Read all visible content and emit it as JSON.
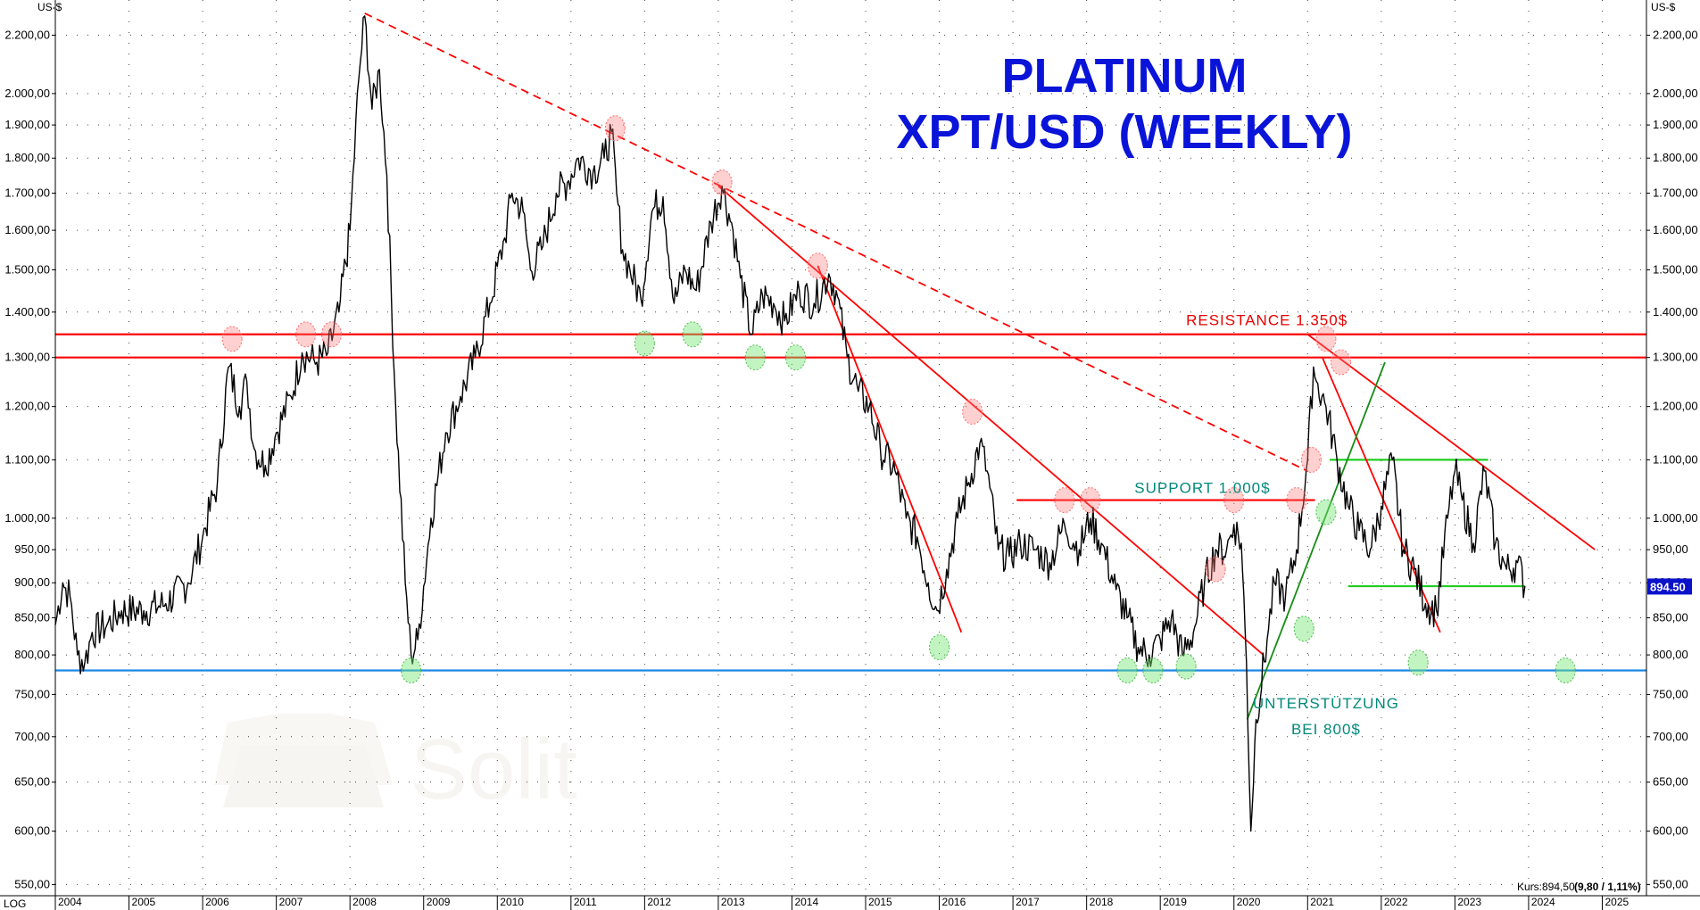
{
  "chart_data": {
    "type": "line",
    "title": "PLATINUM",
    "subtitle": "XPT/USD (WEEKLY)",
    "y_unit_label": "US-$",
    "scale_label": "LOG",
    "log_scale": true,
    "grid": true,
    "ylim": [
      540,
      2330
    ],
    "xlim": [
      2004.0,
      2025.6
    ],
    "y_ticks": [
      {
        "v": 550,
        "label": "550,00"
      },
      {
        "v": 600,
        "label": "600,00"
      },
      {
        "v": 650,
        "label": "650,00"
      },
      {
        "v": 700,
        "label": "700,00"
      },
      {
        "v": 750,
        "label": "750,00"
      },
      {
        "v": 800,
        "label": "800,00"
      },
      {
        "v": 850,
        "label": "850,00"
      },
      {
        "v": 900,
        "label": "900,00"
      },
      {
        "v": 950,
        "label": "950,00"
      },
      {
        "v": 1000,
        "label": "1.000,00"
      },
      {
        "v": 1100,
        "label": "1.100,00"
      },
      {
        "v": 1200,
        "label": "1.200,00"
      },
      {
        "v": 1300,
        "label": "1.300,00"
      },
      {
        "v": 1400,
        "label": "1.400,00"
      },
      {
        "v": 1500,
        "label": "1.500,00"
      },
      {
        "v": 1600,
        "label": "1.600,00"
      },
      {
        "v": 1700,
        "label": "1.700,00"
      },
      {
        "v": 1800,
        "label": "1.800,00"
      },
      {
        "v": 1900,
        "label": "1.900,00"
      },
      {
        "v": 2000,
        "label": "2.000,00"
      },
      {
        "v": 2200,
        "label": "2.200,00"
      }
    ],
    "x_ticks": [
      "2004",
      "2005",
      "2006",
      "2007",
      "2008",
      "2009",
      "2010",
      "2011",
      "2012",
      "2013",
      "2014",
      "2015",
      "2016",
      "2017",
      "2018",
      "2019",
      "2020",
      "2021",
      "2022",
      "2023",
      "2024",
      "2025"
    ],
    "series": [
      {
        "points": [
          [
            2004.0,
            840
          ],
          [
            2004.1,
            900
          ],
          [
            2004.2,
            880
          ],
          [
            2004.3,
            800
          ],
          [
            2004.4,
            790
          ],
          [
            2004.5,
            830
          ],
          [
            2004.7,
            840
          ],
          [
            2004.9,
            860
          ],
          [
            2005.2,
            860
          ],
          [
            2005.5,
            870
          ],
          [
            2005.8,
            900
          ],
          [
            2006.0,
            970
          ],
          [
            2006.2,
            1060
          ],
          [
            2006.35,
            1280
          ],
          [
            2006.5,
            1200
          ],
          [
            2006.6,
            1250
          ],
          [
            2006.7,
            1120
          ],
          [
            2006.85,
            1090
          ],
          [
            2007.0,
            1150
          ],
          [
            2007.2,
            1220
          ],
          [
            2007.35,
            1310
          ],
          [
            2007.55,
            1290
          ],
          [
            2007.7,
            1310
          ],
          [
            2007.85,
            1400
          ],
          [
            2008.0,
            1600
          ],
          [
            2008.12,
            2050
          ],
          [
            2008.2,
            2270
          ],
          [
            2008.3,
            1950
          ],
          [
            2008.4,
            2080
          ],
          [
            2008.5,
            1750
          ],
          [
            2008.62,
            1200
          ],
          [
            2008.75,
            900
          ],
          [
            2008.83,
            800
          ],
          [
            2008.92,
            820
          ],
          [
            2009.1,
            1000
          ],
          [
            2009.3,
            1150
          ],
          [
            2009.5,
            1220
          ],
          [
            2009.7,
            1300
          ],
          [
            2009.9,
            1420
          ],
          [
            2010.1,
            1580
          ],
          [
            2010.2,
            1700
          ],
          [
            2010.35,
            1650
          ],
          [
            2010.45,
            1500
          ],
          [
            2010.6,
            1550
          ],
          [
            2010.8,
            1700
          ],
          [
            2010.95,
            1730
          ],
          [
            2011.1,
            1800
          ],
          [
            2011.3,
            1760
          ],
          [
            2011.45,
            1800
          ],
          [
            2011.55,
            1880
          ],
          [
            2011.62,
            1700
          ],
          [
            2011.7,
            1550
          ],
          [
            2011.8,
            1500
          ],
          [
            2011.95,
            1430
          ],
          [
            2012.1,
            1650
          ],
          [
            2012.25,
            1690
          ],
          [
            2012.4,
            1420
          ],
          [
            2012.55,
            1500
          ],
          [
            2012.7,
            1450
          ],
          [
            2012.9,
            1620
          ],
          [
            2013.05,
            1720
          ],
          [
            2013.2,
            1600
          ],
          [
            2013.3,
            1480
          ],
          [
            2013.45,
            1350
          ],
          [
            2013.6,
            1440
          ],
          [
            2013.75,
            1420
          ],
          [
            2013.9,
            1380
          ],
          [
            2014.1,
            1450
          ],
          [
            2014.3,
            1420
          ],
          [
            2014.5,
            1490
          ],
          [
            2014.6,
            1450
          ],
          [
            2014.75,
            1300
          ],
          [
            2014.9,
            1230
          ],
          [
            2015.05,
            1200
          ],
          [
            2015.2,
            1120
          ],
          [
            2015.4,
            1080
          ],
          [
            2015.55,
            1000
          ],
          [
            2015.7,
            970
          ],
          [
            2015.85,
            900
          ],
          [
            2015.97,
            860
          ],
          [
            2016.1,
            920
          ],
          [
            2016.25,
            1000
          ],
          [
            2016.4,
            1060
          ],
          [
            2016.55,
            1130
          ],
          [
            2016.65,
            1080
          ],
          [
            2016.8,
            950
          ],
          [
            2016.95,
            940
          ],
          [
            2017.1,
            960
          ],
          [
            2017.3,
            950
          ],
          [
            2017.5,
            930
          ],
          [
            2017.7,
            990
          ],
          [
            2017.9,
            950
          ],
          [
            2018.05,
            1000
          ],
          [
            2018.2,
            960
          ],
          [
            2018.4,
            890
          ],
          [
            2018.55,
            850
          ],
          [
            2018.7,
            810
          ],
          [
            2018.85,
            800
          ],
          [
            2019.0,
            820
          ],
          [
            2019.15,
            850
          ],
          [
            2019.3,
            800
          ],
          [
            2019.45,
            830
          ],
          [
            2019.6,
            900
          ],
          [
            2019.75,
            950
          ],
          [
            2019.9,
            950
          ],
          [
            2020.0,
            990
          ],
          [
            2020.1,
            960
          ],
          [
            2020.17,
            790
          ],
          [
            2020.23,
            600
          ],
          [
            2020.3,
            720
          ],
          [
            2020.45,
            820
          ],
          [
            2020.55,
            900
          ],
          [
            2020.7,
            880
          ],
          [
            2020.85,
            950
          ],
          [
            2021.0,
            1100
          ],
          [
            2021.08,
            1280
          ],
          [
            2021.12,
            1250
          ],
          [
            2021.25,
            1200
          ],
          [
            2021.4,
            1100
          ],
          [
            2021.55,
            1020
          ],
          [
            2021.7,
            980
          ],
          [
            2021.85,
            950
          ],
          [
            2022.0,
            1020
          ],
          [
            2022.15,
            1100
          ],
          [
            2022.3,
            950
          ],
          [
            2022.45,
            920
          ],
          [
            2022.6,
            870
          ],
          [
            2022.75,
            860
          ],
          [
            2022.9,
            1000
          ],
          [
            2023.0,
            1080
          ],
          [
            2023.1,
            1030
          ],
          [
            2023.25,
            960
          ],
          [
            2023.4,
            1080
          ],
          [
            2023.55,
            960
          ],
          [
            2023.7,
            920
          ],
          [
            2023.85,
            930
          ],
          [
            2023.95,
            895
          ]
        ]
      }
    ],
    "horizontal_lines": [
      {
        "value": 1350,
        "color": "#ff0000",
        "x0": 2004.0,
        "x1": 2025.6
      },
      {
        "value": 1300,
        "color": "#ff0000",
        "x0": 2004.0,
        "x1": 2025.6
      },
      {
        "value": 780,
        "color": "#1e88e5",
        "x0": 2004.0,
        "x1": 2025.6
      },
      {
        "value": 1030,
        "color": "#ff0000",
        "x0": 2017.05,
        "x1": 2021.1
      },
      {
        "value": 1100,
        "color": "#22cc22",
        "x0": 2021.3,
        "x1": 2023.45
      },
      {
        "value": 895,
        "color": "#22cc22",
        "x0": 2021.55,
        "x1": 2023.95
      }
    ],
    "trend_lines": [
      {
        "x0": 2008.2,
        "y0": 2280,
        "x1": 2021.0,
        "y1": 1080,
        "color": "#ff0000",
        "dashed": true
      },
      {
        "x0": 2013.0,
        "y0": 1720,
        "x1": 2020.4,
        "y1": 800,
        "color": "#ff0000",
        "dashed": false
      },
      {
        "x0": 2014.35,
        "y0": 1510,
        "x1": 2016.3,
        "y1": 830,
        "color": "#ff0000",
        "dashed": false
      },
      {
        "x0": 2021.0,
        "y0": 1350,
        "x1": 2024.9,
        "y1": 950,
        "color": "#ff0000",
        "dashed": false
      },
      {
        "x0": 2021.2,
        "y0": 1300,
        "x1": 2022.8,
        "y1": 830,
        "color": "#ff0000",
        "dashed": false
      },
      {
        "x0": 2020.18,
        "y0": 720,
        "x1": 2022.05,
        "y1": 1290,
        "color": "#168c16",
        "dashed": false
      }
    ],
    "markers": [
      {
        "x": 2006.4,
        "y": 1340,
        "kind": "high"
      },
      {
        "x": 2007.4,
        "y": 1350,
        "kind": "high"
      },
      {
        "x": 2007.75,
        "y": 1350,
        "kind": "high"
      },
      {
        "x": 2011.6,
        "y": 1890,
        "kind": "high"
      },
      {
        "x": 2013.05,
        "y": 1730,
        "kind": "high"
      },
      {
        "x": 2014.35,
        "y": 1510,
        "kind": "high"
      },
      {
        "x": 2016.45,
        "y": 1190,
        "kind": "high"
      },
      {
        "x": 2017.7,
        "y": 1030,
        "kind": "high"
      },
      {
        "x": 2018.05,
        "y": 1030,
        "kind": "high"
      },
      {
        "x": 2019.75,
        "y": 920,
        "kind": "high"
      },
      {
        "x": 2020.0,
        "y": 1030,
        "kind": "high"
      },
      {
        "x": 2020.85,
        "y": 1030,
        "kind": "high"
      },
      {
        "x": 2021.05,
        "y": 1100,
        "kind": "high"
      },
      {
        "x": 2021.25,
        "y": 1340,
        "kind": "high"
      },
      {
        "x": 2021.45,
        "y": 1290,
        "kind": "high"
      },
      {
        "x": 2012.0,
        "y": 1330,
        "kind": "low"
      },
      {
        "x": 2012.65,
        "y": 1350,
        "kind": "low"
      },
      {
        "x": 2013.5,
        "y": 1300,
        "kind": "low"
      },
      {
        "x": 2014.05,
        "y": 1300,
        "kind": "low"
      },
      {
        "x": 2008.83,
        "y": 780,
        "kind": "low"
      },
      {
        "x": 2016.0,
        "y": 810,
        "kind": "low"
      },
      {
        "x": 2018.55,
        "y": 780,
        "kind": "low"
      },
      {
        "x": 2018.9,
        "y": 780,
        "kind": "low"
      },
      {
        "x": 2019.35,
        "y": 785,
        "kind": "low"
      },
      {
        "x": 2020.95,
        "y": 835,
        "kind": "low"
      },
      {
        "x": 2021.25,
        "y": 1010,
        "kind": "low"
      },
      {
        "x": 2022.5,
        "y": 790,
        "kind": "low"
      },
      {
        "x": 2024.5,
        "y": 780,
        "kind": "low"
      }
    ],
    "annotations": [
      {
        "text": "RESISTANCE 1.350$",
        "x": 2019.35,
        "y": 1370,
        "color": "red"
      },
      {
        "text": "SUPPORT 1.000$",
        "x": 2018.65,
        "y": 1042,
        "color": "teal"
      },
      {
        "text": "UNTERSTÜTZUNG",
        "x": 2021.25,
        "y": 733,
        "color": "teal"
      },
      {
        "text": "BEI 800$",
        "x": 2021.25,
        "y": 703,
        "color": "teal"
      }
    ],
    "last_price": {
      "label": "894.50",
      "value": 894.5
    },
    "footer": {
      "kurs_label": "Kurs:894,50",
      "change": "(9,80 / 1,11%)"
    },
    "watermark": "Solit",
    "colors": {
      "price": "#000000",
      "resistance": "#ff0000",
      "support": "#1e88e5",
      "channel": "#22cc22",
      "title": "#0a14d8",
      "annotation_teal": "#00897a"
    }
  }
}
